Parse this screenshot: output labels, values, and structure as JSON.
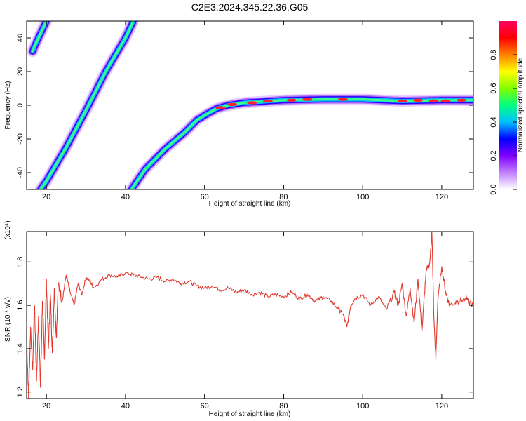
{
  "title": "C2E3.2024.345.22.36.G05",
  "chart_data": [
    {
      "type": "heatmap",
      "name": "spectrogram",
      "xlabel": "Height of straight line (km)",
      "ylabel": "Frequency (Hz)",
      "xlim": [
        15,
        128
      ],
      "ylim": [
        -50,
        50
      ],
      "xticks": [
        20,
        40,
        60,
        80,
        100,
        120
      ],
      "yticks": [
        -40,
        -20,
        0,
        20,
        40
      ],
      "colorbar": {
        "label": "Normalized spectral amplitude",
        "range": [
          0,
          1
        ],
        "ticks": [
          "0.0",
          "0.2",
          "0.4",
          "0.6",
          "0.8"
        ],
        "colors": [
          "#ffffff",
          "#c080ff",
          "#8000ff",
          "#0000ff",
          "#00c0ff",
          "#00ff80",
          "#80ff00",
          "#ffff00",
          "#ff8000",
          "#ff0000",
          "#ff0060"
        ]
      },
      "ridges": [
        {
          "id": "ridge-left-top",
          "points": [
            [
              16.5,
              32
            ],
            [
              17,
              35
            ],
            [
              18,
              40
            ],
            [
              19,
              45
            ],
            [
              20,
              50
            ]
          ]
        },
        {
          "id": "ridge-diagonal",
          "points": [
            [
              18.5,
              -50
            ],
            [
              20,
              -45
            ],
            [
              25,
              -25
            ],
            [
              30,
              -3
            ],
            [
              35,
              20
            ],
            [
              40,
              40
            ],
            [
              42,
              50
            ]
          ]
        },
        {
          "id": "ridge-curved",
          "points": [
            [
              41.5,
              -50
            ],
            [
              45,
              -38
            ],
            [
              50,
              -26
            ],
            [
              55,
              -16
            ],
            [
              58,
              -9
            ],
            [
              60,
              -6
            ],
            [
              63,
              -2
            ],
            [
              66,
              0
            ],
            [
              70,
              1.5
            ],
            [
              80,
              3
            ],
            [
              90,
              3.5
            ],
            [
              100,
              3.5
            ],
            [
              110,
              2.5
            ],
            [
              120,
              3
            ],
            [
              128,
              3
            ]
          ]
        }
      ]
    },
    {
      "type": "line",
      "name": "snr",
      "xlabel": "Height of straight line (km)",
      "ylabel": "SNR (10 * v/v)",
      "yunit": "(x10⁴)",
      "xlim": [
        15,
        128
      ],
      "ylim": [
        1.17,
        1.94
      ],
      "xticks": [
        20,
        40,
        60,
        80,
        100,
        120
      ],
      "yticks": [
        1.2,
        1.4,
        1.6,
        1.8
      ],
      "color": "#e03a2f",
      "x": [
        15,
        15.5,
        16,
        16.5,
        17,
        17.5,
        18,
        18.5,
        19,
        19.5,
        20,
        20.5,
        21,
        21.5,
        22,
        22.5,
        23,
        24,
        25,
        26,
        27,
        28,
        29,
        30,
        31,
        32,
        34,
        36,
        38,
        40,
        42,
        44,
        46,
        48,
        50,
        52,
        54,
        56,
        58,
        60,
        62,
        64,
        66,
        68,
        70,
        72,
        74,
        76,
        78,
        80,
        82,
        84,
        86,
        88,
        90,
        92,
        94,
        95,
        96,
        97,
        98,
        100,
        102,
        104,
        106,
        108,
        109,
        110,
        111,
        112,
        113,
        114,
        115,
        116,
        117,
        117.5,
        118,
        118.5,
        119,
        120,
        121,
        122,
        124,
        126,
        128
      ],
      "values": [
        1.45,
        1.17,
        1.5,
        1.3,
        1.6,
        1.25,
        1.55,
        1.22,
        1.62,
        1.35,
        1.72,
        1.4,
        1.65,
        1.38,
        1.68,
        1.45,
        1.7,
        1.62,
        1.74,
        1.66,
        1.6,
        1.7,
        1.65,
        1.73,
        1.71,
        1.68,
        1.72,
        1.74,
        1.73,
        1.75,
        1.74,
        1.73,
        1.72,
        1.73,
        1.71,
        1.72,
        1.7,
        1.71,
        1.69,
        1.68,
        1.69,
        1.67,
        1.68,
        1.66,
        1.67,
        1.65,
        1.66,
        1.64,
        1.65,
        1.64,
        1.66,
        1.63,
        1.65,
        1.62,
        1.64,
        1.62,
        1.58,
        1.56,
        1.5,
        1.6,
        1.63,
        1.65,
        1.6,
        1.64,
        1.58,
        1.66,
        1.6,
        1.7,
        1.55,
        1.68,
        1.52,
        1.72,
        1.48,
        1.75,
        1.8,
        1.94,
        1.55,
        1.35,
        1.62,
        1.78,
        1.66,
        1.6,
        1.62,
        1.63,
        1.6
      ]
    }
  ]
}
